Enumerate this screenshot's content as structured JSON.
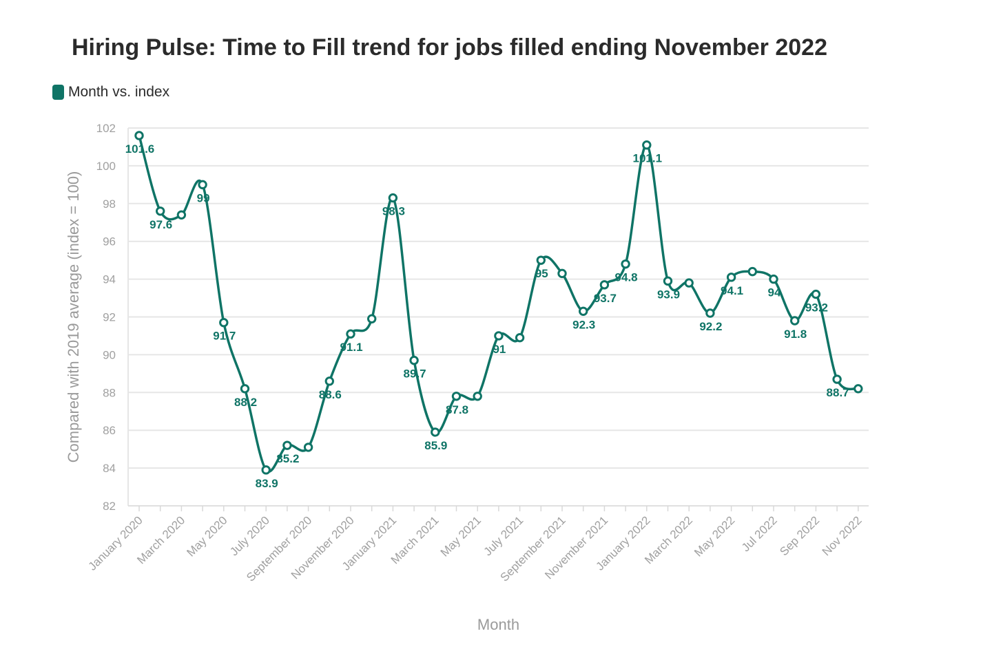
{
  "chart_data": {
    "type": "line",
    "title": "Hiring Pulse: Time to Fill trend for jobs filled ending November 2022",
    "xlabel": "Month",
    "ylabel": "Compared with 2019 average (index = 100)",
    "ylim": [
      82,
      102
    ],
    "yticks": [
      82,
      84,
      86,
      88,
      90,
      92,
      94,
      96,
      98,
      100,
      102
    ],
    "grid": true,
    "legend_position": "top-left",
    "color": "#0f7466",
    "categories": [
      "January 2020",
      "February 2020",
      "March 2020",
      "April 2020",
      "May 2020",
      "June 2020",
      "July 2020",
      "August 2020",
      "September 2020",
      "October 2020",
      "November 2020",
      "December 2020",
      "January 2021",
      "February 2021",
      "March 2021",
      "April 2021",
      "May 2021",
      "June 2021",
      "July 2021",
      "August 2021",
      "September 2021",
      "October 2021",
      "November 2021",
      "December 2021",
      "January 2022",
      "February 2022",
      "March 2022",
      "April 2022",
      "May 2022",
      "Jun 2022",
      "Jul 2022",
      "Aug 2022",
      "Sep 2022",
      "Oct 2022",
      "Nov 2022"
    ],
    "tick_labels": [
      "January 2020",
      "March 2020",
      "May 2020",
      "July 2020",
      "September 2020",
      "November 2020",
      "January 2021",
      "March 2021",
      "May 2021",
      "July 2021",
      "September 2021",
      "November 2021",
      "January 2022",
      "March 2022",
      "May 2022",
      "Jul 2022",
      "Sep 2022",
      "Nov 2022"
    ],
    "series": [
      {
        "name": "Month vs. index",
        "values": [
          101.6,
          97.6,
          97.4,
          99,
          91.7,
          88.2,
          83.9,
          85.2,
          85.1,
          88.6,
          91.1,
          91.9,
          98.3,
          89.7,
          85.9,
          87.8,
          87.8,
          91,
          90.9,
          95,
          94.3,
          92.3,
          93.7,
          94.8,
          101.1,
          93.9,
          93.8,
          92.2,
          94.1,
          94.4,
          94,
          91.8,
          93.2,
          88.7,
          88.2
        ],
        "data_labels": [
          "101.6",
          "97.6",
          "",
          "99",
          "91.7",
          "88.2",
          "83.9",
          "85.2",
          "",
          "88.6",
          "91.1",
          "",
          "98.3",
          "89.7",
          "85.9",
          "87.8",
          "",
          "91",
          "",
          "95",
          "",
          "92.3",
          "93.7",
          "94.8",
          "101.1",
          "93.9",
          "",
          "92.2",
          "94.1",
          "",
          "94",
          "91.8",
          "93.2",
          "88.7",
          ""
        ]
      }
    ]
  }
}
